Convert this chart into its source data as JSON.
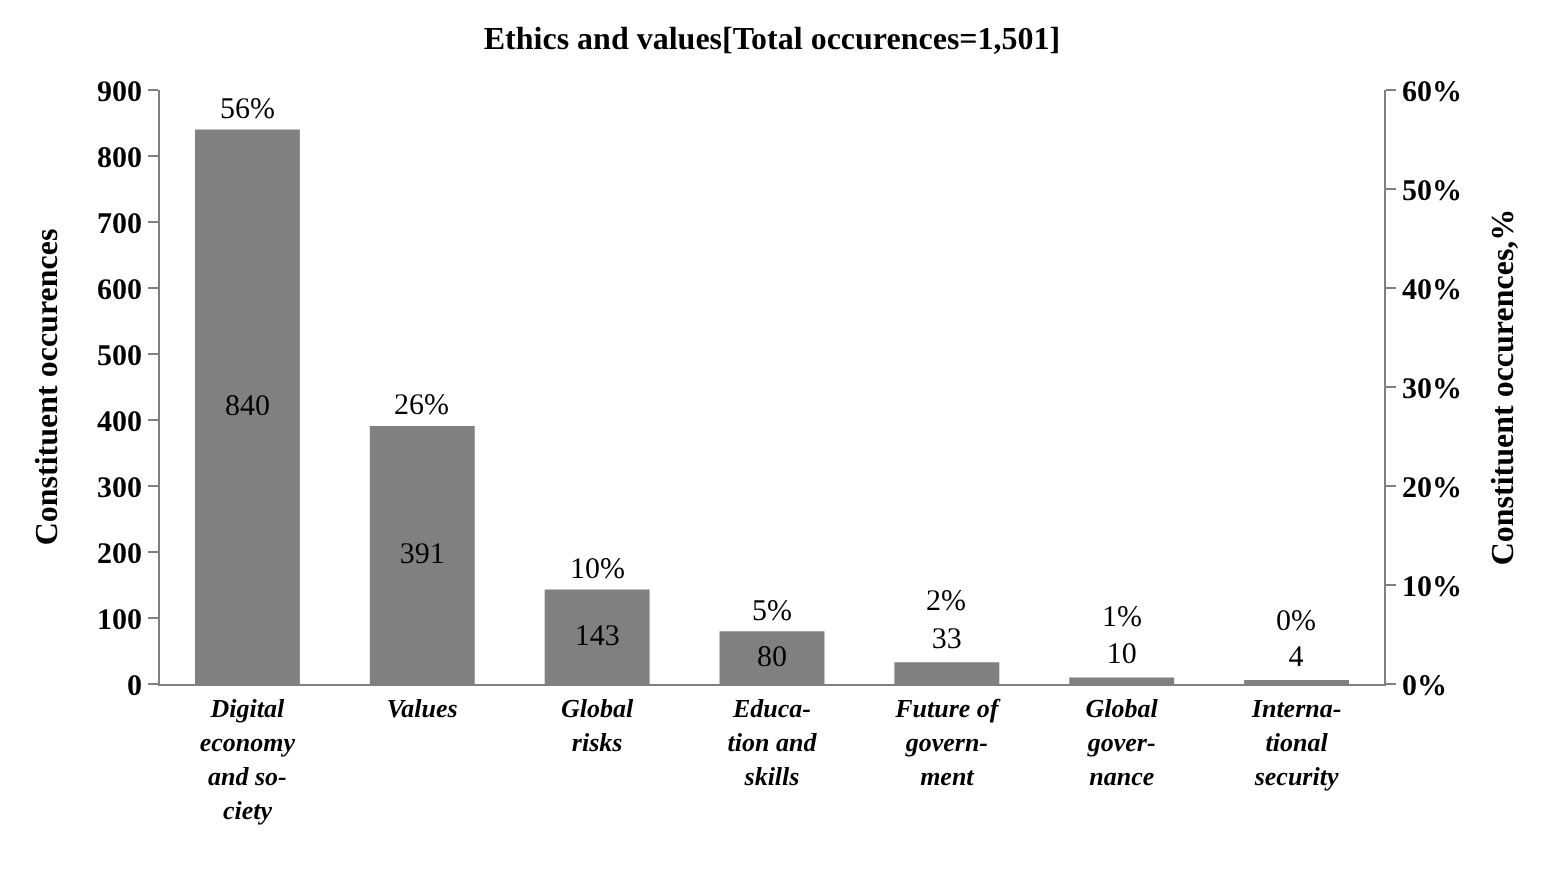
{
  "chart_data": {
    "type": "bar",
    "title": "Ethics and values[Total occurences=1,501]",
    "categories": [
      "Digital\neconomy\nand so-\nciety",
      "Values",
      "Global\nrisks",
      "Educa-\ntion and\nskills",
      "Future of\ngovern-\nment",
      "Global\ngover-\nnance",
      "Interna-\ntional\nsecurity"
    ],
    "values": [
      840,
      391,
      143,
      80,
      33,
      10,
      4
    ],
    "color": "#808080",
    "data_labels": true,
    "annotations": [
      {
        "text": "56%",
        "x": "Digital\neconomy\nand so-\nciety",
        "y": 840
      },
      {
        "text": "26%",
        "x": "Values",
        "y": 391
      },
      {
        "text": "10%",
        "x": "Global\nrisks",
        "y": 143
      },
      {
        "text": "5%",
        "x": "Educa-\ntion and\nskills",
        "y": 80
      },
      {
        "text": "2%",
        "x": "Future of\ngovern-\nment",
        "y": 33
      },
      {
        "text": "1%",
        "x": "Global\ngover-\nnance",
        "y": 10
      },
      {
        "text": "0%",
        "x": "Interna-\ntional\nsecurity",
        "y": 4
      }
    ],
    "ylabel": "Constituent occurences",
    "y2label": "Constituent occurences,%",
    "ylim": [
      0,
      900
    ],
    "yticks": [
      0,
      100,
      200,
      300,
      400,
      500,
      600,
      700,
      800,
      900
    ],
    "y2lim": [
      0,
      60
    ],
    "y2ticks": [
      {
        "value": 0,
        "label": "0%"
      },
      {
        "value": 10,
        "label": "10%"
      },
      {
        "value": 20,
        "label": "20%"
      },
      {
        "value": 30,
        "label": "30%"
      },
      {
        "value": 40,
        "label": "40%"
      },
      {
        "value": 50,
        "label": "50%"
      },
      {
        "value": 60,
        "label": "60%"
      }
    ],
    "grid": false
  }
}
